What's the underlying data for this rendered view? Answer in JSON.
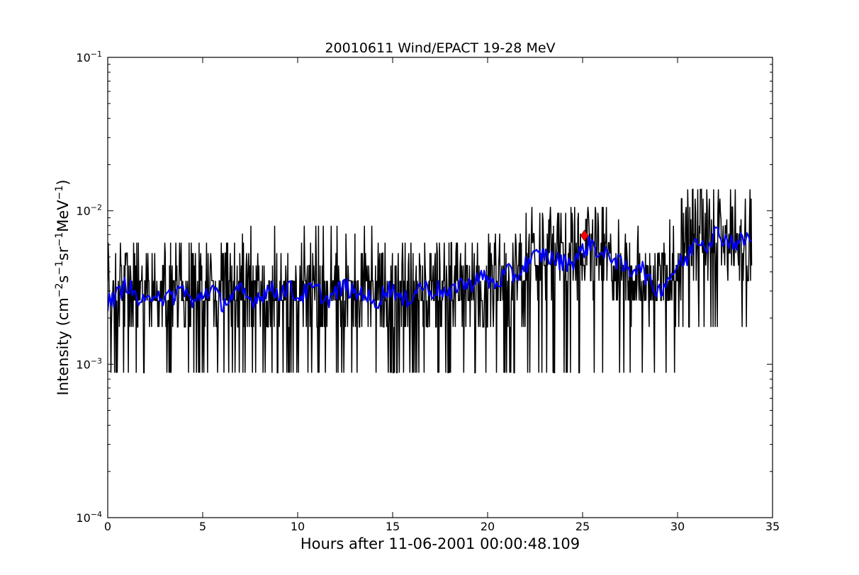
{
  "chart_data": {
    "type": "line",
    "title": "20010611 Wind/EPACT 19-28 MeV",
    "xlabel": "Hours after 11-06-2001 00:00:48.109",
    "ylabel": "Intensity (cm^-2 s^-1 sr^-1 MeV^-1)",
    "ylabel_parts": [
      "Intensity (cm",
      "−2",
      "s",
      "−1",
      "sr",
      "−1",
      "MeV",
      "−1",
      ")"
    ],
    "xlim": [
      0,
      35
    ],
    "ylim": [
      0.0001,
      0.1
    ],
    "yscale": "log",
    "grid": false,
    "x_ticks": [
      "0",
      "5",
      "10",
      "15",
      "20",
      "25",
      "30",
      "35"
    ],
    "y_ticks": [
      {
        "base": "10",
        "exp": "−4",
        "value": 0.0001
      },
      {
        "base": "10",
        "exp": "−3",
        "value": 0.001
      },
      {
        "base": "10",
        "exp": "−2",
        "value": 0.01
      },
      {
        "base": "10",
        "exp": "−1",
        "value": 0.1
      }
    ],
    "series": [
      {
        "role": "raw intensity",
        "color": "#000000",
        "x_start": 0.0,
        "x_end": 33.9,
        "levels": [
          0.00088,
          0.00175,
          0.0026,
          0.0035,
          0.0044,
          0.0053,
          0.0062,
          0.0071,
          0.008,
          0.0088,
          0.0097,
          0.0106,
          0.012,
          0.0138
        ],
        "segments": [
          {
            "x_from": 0.0,
            "x_to": 7.0,
            "mean": 0.0029,
            "low": 0.00088,
            "high": 0.0062
          },
          {
            "x_from": 7.0,
            "x_to": 14.0,
            "mean": 0.0029,
            "low": 0.00088,
            "high": 0.008
          },
          {
            "x_from": 14.0,
            "x_to": 20.0,
            "mean": 0.0031,
            "low": 0.00088,
            "high": 0.0062
          },
          {
            "x_from": 20.0,
            "x_to": 22.0,
            "mean": 0.0036,
            "low": 0.00088,
            "high": 0.0071
          },
          {
            "x_from": 22.0,
            "x_to": 26.5,
            "mean": 0.0052,
            "low": 0.00088,
            "high": 0.0106
          },
          {
            "x_from": 26.5,
            "x_to": 30.2,
            "mean": 0.0038,
            "low": 0.00088,
            "high": 0.0088
          },
          {
            "x_from": 30.2,
            "x_to": 33.9,
            "mean": 0.0067,
            "low": 0.0017,
            "high": 0.0138
          }
        ]
      },
      {
        "role": "smoothed intensity",
        "color": "#0000ff",
        "x": [
          0.0,
          0.5,
          1.0,
          1.5,
          2.0,
          2.5,
          3.0,
          3.5,
          4.0,
          4.5,
          5.0,
          5.5,
          6.0,
          6.5,
          7.0,
          7.5,
          8.0,
          8.5,
          9.0,
          9.5,
          10.0,
          10.5,
          11.0,
          11.5,
          12.0,
          12.5,
          13.0,
          13.5,
          14.0,
          14.5,
          15.0,
          15.5,
          16.0,
          16.5,
          17.0,
          17.5,
          18.0,
          18.5,
          19.0,
          19.5,
          20.0,
          20.5,
          21.0,
          21.5,
          22.0,
          22.5,
          23.0,
          23.5,
          24.0,
          24.5,
          25.0,
          25.5,
          26.0,
          26.5,
          27.0,
          27.5,
          28.0,
          28.5,
          29.0,
          29.5,
          30.0,
          30.5,
          31.0,
          31.5,
          32.0,
          32.5,
          33.0,
          33.5,
          33.9
        ],
        "y": [
          0.0025,
          0.0028,
          0.0034,
          0.0027,
          0.0024,
          0.0031,
          0.0026,
          0.0028,
          0.0032,
          0.0024,
          0.0029,
          0.0031,
          0.0025,
          0.0027,
          0.003,
          0.0026,
          0.0028,
          0.0031,
          0.0029,
          0.0032,
          0.0027,
          0.003,
          0.0031,
          0.0026,
          0.0029,
          0.0033,
          0.0028,
          0.003,
          0.0024,
          0.0029,
          0.0032,
          0.0025,
          0.0028,
          0.0033,
          0.003,
          0.0031,
          0.0027,
          0.0035,
          0.0032,
          0.0038,
          0.0035,
          0.0033,
          0.004,
          0.0037,
          0.0045,
          0.005,
          0.0052,
          0.0048,
          0.0046,
          0.0047,
          0.0055,
          0.0062,
          0.005,
          0.0052,
          0.0044,
          0.004,
          0.0046,
          0.0034,
          0.003,
          0.0036,
          0.0044,
          0.0048,
          0.0068,
          0.006,
          0.0072,
          0.0066,
          0.0062,
          0.0064,
          0.0068
        ]
      }
    ],
    "marker": {
      "x": 25.1,
      "y": 0.0069,
      "shape": "diamond",
      "color": "#ff0000"
    }
  }
}
